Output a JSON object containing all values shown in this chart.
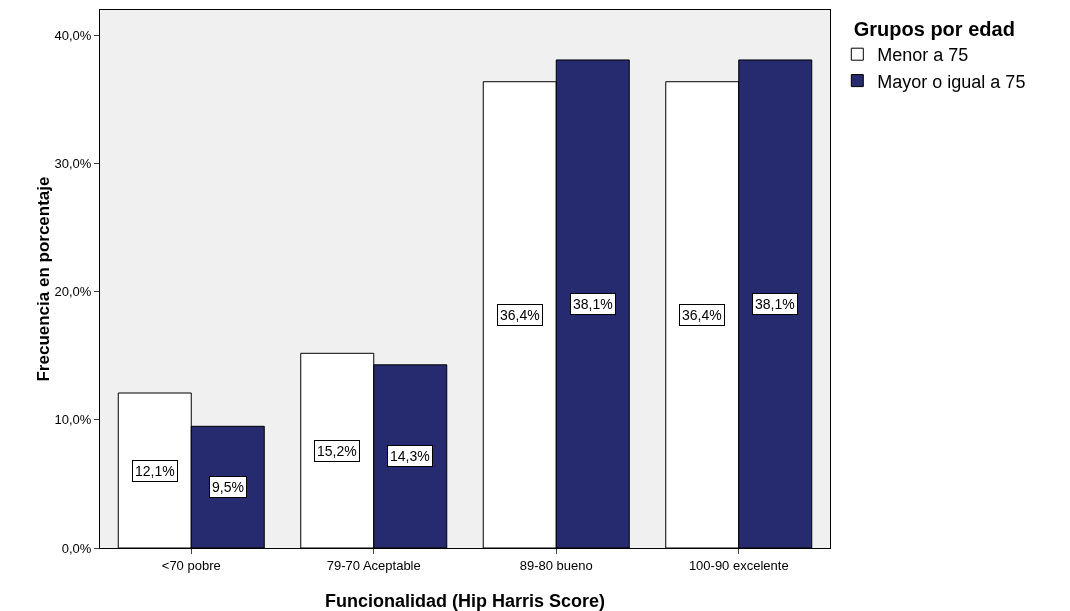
{
  "chart_data": {
    "type": "bar",
    "xlabel": "Funcionalidad (Hip Harris Score)",
    "ylabel": "Frecuencia en porcentaje",
    "legend_title": "Grupos por edad",
    "categories": [
      "<70 pobre",
      "79-70 Aceptable",
      "89-80 bueno",
      "100-90 excelente"
    ],
    "series": [
      {
        "name": "Menor a 75",
        "color": "#ffffff",
        "values": [
          12.1,
          15.2,
          36.4,
          36.4
        ],
        "value_labels": [
          "12,1%",
          "15,2%",
          "36,4%",
          "36,4%"
        ]
      },
      {
        "name": "Mayor o igual a 75",
        "color": "#262a6e",
        "values": [
          9.5,
          14.3,
          38.1,
          38.1
        ],
        "value_labels": [
          "9,5%",
          "14,3%",
          "38,1%",
          "38,1%"
        ]
      }
    ],
    "ylim": [
      0,
      42
    ],
    "yticks": [
      {
        "value": 0,
        "label": "0,0%"
      },
      {
        "value": 10,
        "label": "10,0%"
      },
      {
        "value": 20,
        "label": "20,0%"
      },
      {
        "value": 30,
        "label": "30,0%"
      },
      {
        "value": 40,
        "label": "40,0%"
      }
    ],
    "grid": false,
    "legend": "top right"
  }
}
